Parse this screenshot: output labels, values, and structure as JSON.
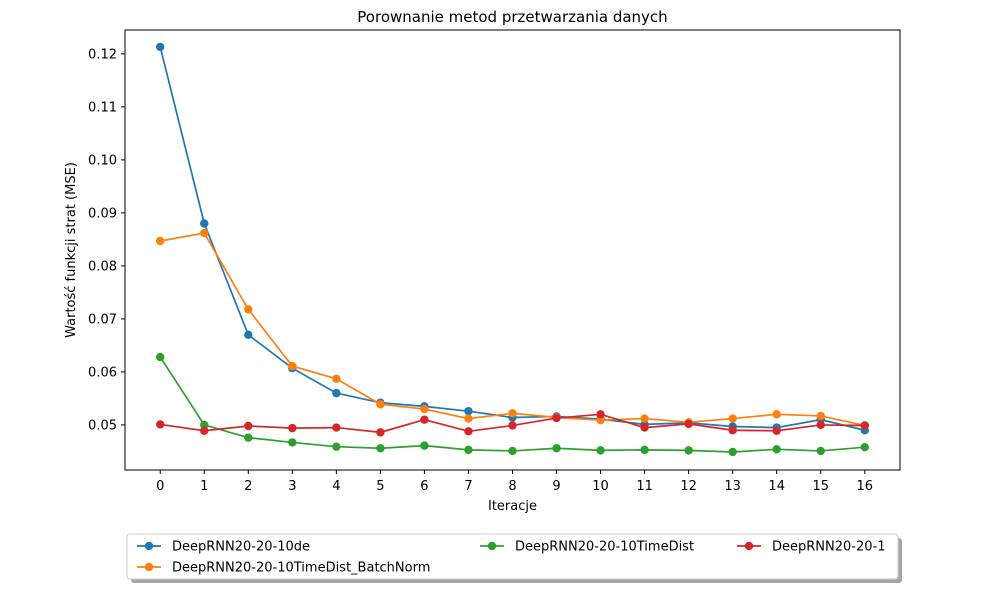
{
  "chart_data": {
    "type": "line",
    "title": "Porownanie metod przetwarzania danych",
    "xlabel": "Iteracje",
    "ylabel": "Wartość funkcji strat (MSE)",
    "x": [
      0,
      1,
      2,
      3,
      4,
      5,
      6,
      7,
      8,
      9,
      10,
      11,
      12,
      13,
      14,
      15,
      16
    ],
    "xlim": [
      -0.8,
      16.8
    ],
    "ylim": [
      0.0415,
      0.1245
    ],
    "yticks": [
      0.05,
      0.06,
      0.07,
      0.08,
      0.09,
      0.1,
      0.11,
      0.12
    ],
    "ytick_labels": [
      "0.05",
      "0.06",
      "0.07",
      "0.08",
      "0.09",
      "0.10",
      "0.11",
      "0.12"
    ],
    "grid": false,
    "legend_position": "bottom-center, below axes",
    "series": [
      {
        "name": "DeepRNN20-20-10de",
        "color": "#1f77b4",
        "values": [
          0.1213,
          0.088,
          0.067,
          0.0607,
          0.056,
          0.0542,
          0.0535,
          0.0526,
          0.0514,
          0.0516,
          0.0511,
          0.0501,
          0.0504,
          0.0497,
          0.0495,
          0.051,
          0.049
        ]
      },
      {
        "name": "DeepRNN20-20-10TimeDist_BatchNorm",
        "color": "#ff7f0e",
        "values": [
          0.0847,
          0.0862,
          0.0718,
          0.0611,
          0.0587,
          0.0539,
          0.053,
          0.0512,
          0.0522,
          0.0514,
          0.0509,
          0.0512,
          0.0505,
          0.0512,
          0.052,
          0.0517,
          0.0499
        ]
      },
      {
        "name": "DeepRNN20-20-10TimeDist",
        "color": "#2ca02c",
        "values": [
          0.0628,
          0.05,
          0.0476,
          0.0467,
          0.0459,
          0.0456,
          0.0461,
          0.0453,
          0.0451,
          0.0456,
          0.0452,
          0.0453,
          0.0452,
          0.0449,
          0.0454,
          0.0451,
          0.0458
        ]
      },
      {
        "name": "DeepRNN20-20-1",
        "color": "#d62728",
        "values": [
          0.0501,
          0.0489,
          0.0498,
          0.0494,
          0.0495,
          0.0486,
          0.051,
          0.0488,
          0.0499,
          0.0513,
          0.052,
          0.0495,
          0.0502,
          0.049,
          0.0489,
          0.05,
          0.0499
        ]
      }
    ]
  }
}
